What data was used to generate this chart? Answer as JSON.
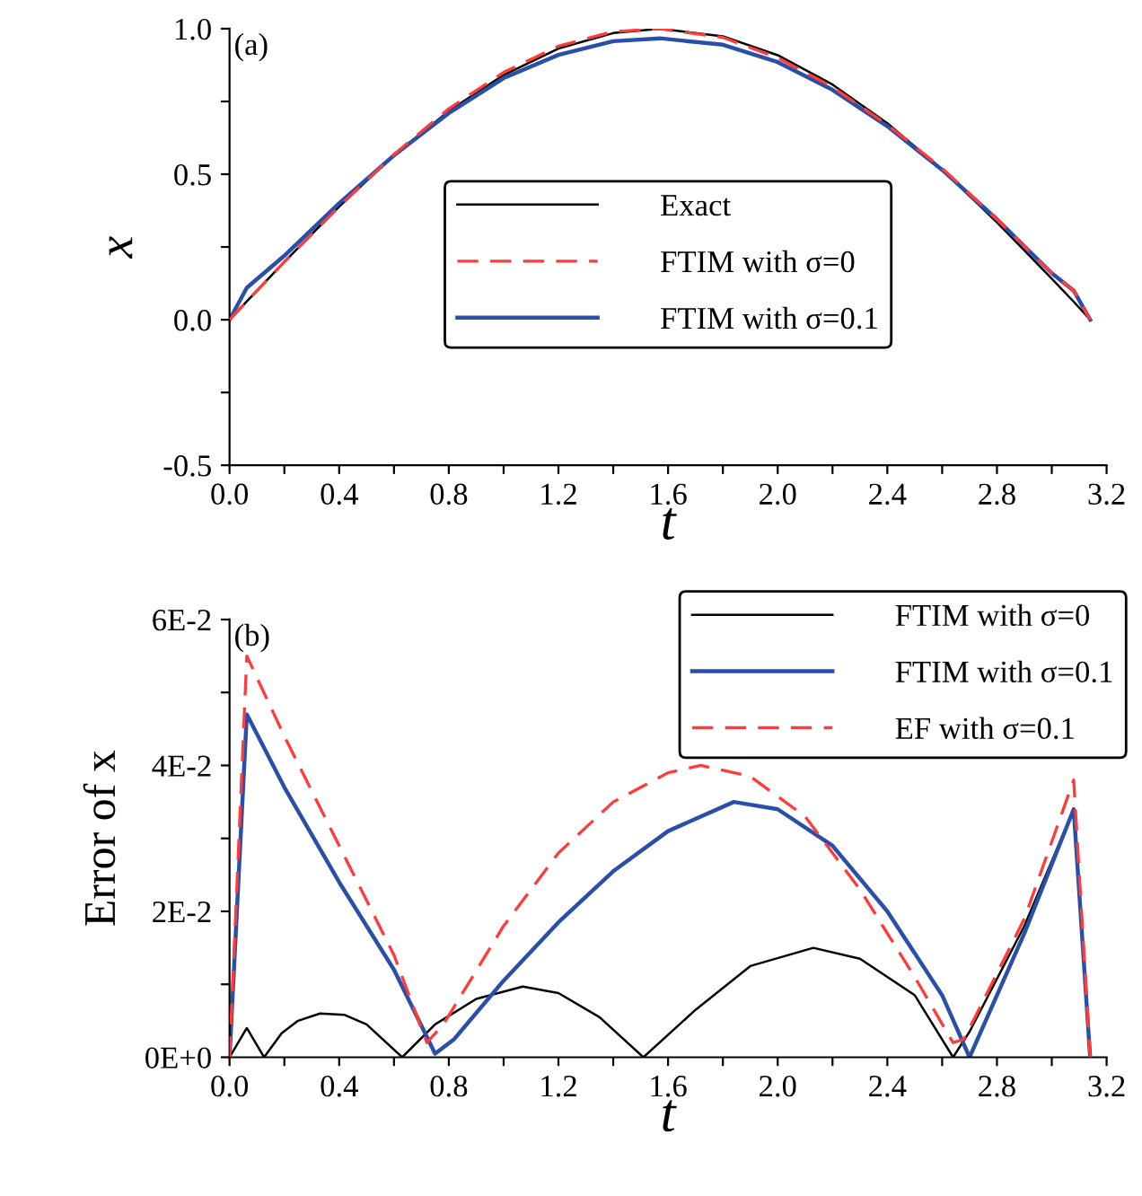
{
  "chart_data": [
    {
      "type": "line",
      "xlabel": "t",
      "ylabel": "x",
      "annotations": [
        "(a)"
      ],
      "legend": "center",
      "grid": false,
      "xlim": [
        0,
        3.2
      ],
      "ylim": [
        -0.5,
        1.0
      ],
      "xticks": [
        {
          "value": 0,
          "label": "0.0"
        },
        {
          "value": 0.2,
          "label": null
        },
        0.4,
        {
          "value": 0.6,
          "label": null
        },
        0.8,
        {
          "value": 1.0,
          "label": null
        },
        1.2,
        {
          "value": 1.4,
          "label": null
        },
        1.6,
        {
          "value": 1.8,
          "label": null
        },
        {
          "value": 2,
          "label": "2.0"
        },
        {
          "value": 2.2,
          "label": null
        },
        2.4,
        {
          "value": 2.6,
          "label": null
        },
        2.8,
        {
          "value": 3.0,
          "label": null
        },
        3.2
      ],
      "yticks": [
        -0.5,
        {
          "value": -0.25,
          "label": null
        },
        {
          "value": 0,
          "label": "0.0"
        },
        {
          "value": 0.25,
          "label": null
        },
        0.5,
        {
          "value": 0.75,
          "label": null
        },
        {
          "value": 1,
          "label": "1.0"
        }
      ],
      "series": [
        {
          "name": "Exact",
          "color": "#000000",
          "line_style": "solid",
          "x": [
            0,
            0.063,
            0.2,
            0.4,
            0.6,
            0.8,
            1.0,
            1.2,
            1.4,
            1.57,
            1.8,
            2.0,
            2.2,
            2.4,
            2.6,
            2.8,
            3.0,
            3.08,
            3.14
          ],
          "values": [
            0,
            0.063,
            0.199,
            0.389,
            0.565,
            0.717,
            0.841,
            0.932,
            0.985,
            1.0,
            0.974,
            0.909,
            0.808,
            0.675,
            0.516,
            0.335,
            0.141,
            0.062,
            0
          ]
        },
        {
          "name": "FTIM with σ=0",
          "color": "#ff3b3b",
          "line_style": "dashed",
          "x": [
            0,
            0.063,
            0.2,
            0.4,
            0.6,
            0.8,
            1.0,
            1.2,
            1.4,
            1.57,
            1.8,
            2.0,
            2.2,
            2.4,
            2.6,
            2.8,
            3.0,
            3.08,
            3.14
          ],
          "values": [
            0,
            0.063,
            0.199,
            0.389,
            0.568,
            0.725,
            0.85,
            0.94,
            0.99,
            1.0,
            0.97,
            0.9,
            0.8,
            0.67,
            0.52,
            0.345,
            0.16,
            0.1,
            0
          ]
        },
        {
          "name": "FTIM with σ=0.1",
          "color": "#2a4fa8",
          "line_style": "solid",
          "x": [
            0,
            0.063,
            0.2,
            0.4,
            0.6,
            0.8,
            1.0,
            1.2,
            1.4,
            1.57,
            1.8,
            2.0,
            2.2,
            2.4,
            2.6,
            2.8,
            3.0,
            3.08,
            3.14
          ],
          "values": [
            0,
            0.11,
            0.22,
            0.4,
            0.565,
            0.71,
            0.83,
            0.91,
            0.957,
            0.967,
            0.945,
            0.885,
            0.79,
            0.665,
            0.515,
            0.345,
            0.16,
            0.1,
            0
          ]
        }
      ]
    },
    {
      "type": "line",
      "xlabel": "t",
      "ylabel": "Error of x",
      "annotations": [
        "(b)"
      ],
      "legend": "top right",
      "grid": false,
      "xlim": [
        0,
        3.2
      ],
      "ylim": [
        0,
        0.06
      ],
      "xticks": [
        {
          "value": 0,
          "label": "0.0"
        },
        {
          "value": 0.2,
          "label": null
        },
        0.4,
        {
          "value": 0.6,
          "label": null
        },
        0.8,
        {
          "value": 1.0,
          "label": null
        },
        1.2,
        {
          "value": 1.4,
          "label": null
        },
        1.6,
        {
          "value": 1.8,
          "label": null
        },
        {
          "value": 2,
          "label": "2.0"
        },
        {
          "value": 2.2,
          "label": null
        },
        2.4,
        {
          "value": 2.6,
          "label": null
        },
        2.8,
        {
          "value": 3.0,
          "label": null
        },
        3.2
      ],
      "yticks": [
        {
          "value": 0,
          "label": "0E+0"
        },
        {
          "value": 0.01,
          "label": null
        },
        {
          "value": 0.02,
          "label": "2E-2"
        },
        {
          "value": 0.03,
          "label": null
        },
        {
          "value": 0.04,
          "label": "4E-2"
        },
        {
          "value": 0.05,
          "label": null
        },
        {
          "value": 0.06,
          "label": "6E-2"
        }
      ],
      "series": [
        {
          "name": "FTIM with σ=0",
          "color": "#000000",
          "line_style": "solid",
          "x": [
            0,
            0.063,
            0.126,
            0.19,
            0.25,
            0.33,
            0.42,
            0.5,
            0.63,
            0.75,
            0.9,
            1.07,
            1.2,
            1.35,
            1.51,
            1.7,
            1.9,
            2.13,
            2.3,
            2.5,
            2.64,
            2.7,
            2.9,
            3.08,
            3.14
          ],
          "values": [
            0,
            0.004,
            0,
            0.0033,
            0.005,
            0.006,
            0.0058,
            0.0045,
            0,
            0.0045,
            0.008,
            0.0097,
            0.0088,
            0.0055,
            0,
            0.0065,
            0.0125,
            0.015,
            0.0135,
            0.0085,
            0,
            0.0035,
            0.018,
            0.034,
            0
          ]
        },
        {
          "name": "FTIM with σ=0.1",
          "color": "#2a4fa8",
          "line_style": "solid",
          "x": [
            0,
            0.063,
            0.2,
            0.4,
            0.6,
            0.75,
            0.82,
            1.0,
            1.2,
            1.4,
            1.6,
            1.84,
            2.0,
            2.2,
            2.4,
            2.6,
            2.7,
            2.9,
            3.08,
            3.14
          ],
          "values": [
            0,
            0.047,
            0.037,
            0.024,
            0.012,
            0.0005,
            0.0025,
            0.0105,
            0.0185,
            0.0255,
            0.031,
            0.035,
            0.034,
            0.029,
            0.02,
            0.0085,
            0,
            0.017,
            0.034,
            0
          ]
        },
        {
          "name": "EF with σ=0.1",
          "color": "#ff3b3b",
          "line_style": "dashed",
          "x": [
            0,
            0.063,
            0.2,
            0.4,
            0.6,
            0.72,
            0.78,
            1.0,
            1.2,
            1.4,
            1.6,
            1.72,
            1.9,
            2.1,
            2.3,
            2.5,
            2.64,
            2.68,
            2.9,
            3.08,
            3.14
          ],
          "values": [
            0,
            0.055,
            0.044,
            0.029,
            0.014,
            0.002,
            0.0045,
            0.018,
            0.028,
            0.035,
            0.039,
            0.04,
            0.0385,
            0.033,
            0.023,
            0.011,
            0.002,
            0.0025,
            0.019,
            0.038,
            0
          ]
        }
      ]
    }
  ]
}
